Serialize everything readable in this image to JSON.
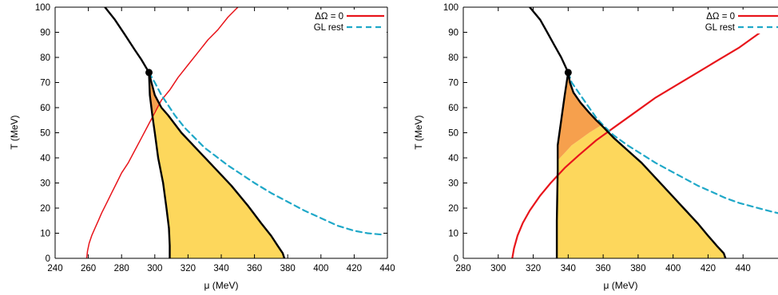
{
  "chart_data": [
    {
      "type": "line",
      "xlabel": "μ (MeV)",
      "ylabel": "T (MeV)",
      "xlim": [
        240,
        440
      ],
      "ylim": [
        0,
        100
      ],
      "xticks": [
        240,
        260,
        280,
        300,
        320,
        340,
        360,
        380,
        400,
        420,
        440
      ],
      "yticks": [
        0,
        10,
        20,
        30,
        40,
        50,
        60,
        70,
        80,
        90,
        100
      ],
      "legend_position": "top-right",
      "legend": [
        {
          "label": "ΔΩ = 0",
          "color": "#e8151b",
          "style": "solid"
        },
        {
          "label": "GL rest",
          "color": "#1fa8c8",
          "style": "dashed"
        }
      ],
      "critical_point": {
        "x": 296.5,
        "y": 74
      },
      "regions": [
        {
          "color": "#fdd75c",
          "points": [
            [
              296.5,
              74
            ],
            [
              298,
              70
            ],
            [
              300,
              65
            ],
            [
              304,
              60
            ],
            [
              308,
              57
            ],
            [
              316,
              50
            ],
            [
              326,
              43
            ],
            [
              336,
              36
            ],
            [
              346,
              29
            ],
            [
              356,
              21
            ],
            [
              364,
              14
            ],
            [
              370,
              9
            ],
            [
              374,
              5
            ],
            [
              377,
              2
            ],
            [
              378,
              0
            ],
            [
              309,
              0
            ],
            [
              309,
              5
            ],
            [
              308.5,
              12
            ],
            [
              307,
              20
            ],
            [
              305,
              30
            ],
            [
              302,
              40
            ],
            [
              300,
              50
            ],
            [
              298.5,
              57
            ],
            [
              297,
              65
            ]
          ]
        },
        {
          "color": "#f6a04d",
          "points": [
            [
              296.5,
              74
            ],
            [
              298,
              70
            ],
            [
              300,
              65
            ],
            [
              303,
              61
            ],
            [
              299,
              58
            ],
            [
              298.5,
              57
            ],
            [
              297,
              65
            ]
          ]
        }
      ],
      "series": [
        {
          "name": "ΔΩ = 0",
          "color": "#e8151b",
          "width": 1.5,
          "dash": "",
          "x": [
            259,
            259.5,
            260.5,
            262,
            264,
            266,
            268,
            271,
            274,
            277,
            280,
            284,
            288,
            292,
            296,
            300,
            304,
            309,
            314,
            320,
            326,
            332,
            338,
            344,
            350
          ],
          "y": [
            0,
            3,
            6,
            9,
            12,
            15,
            18,
            22,
            26,
            30,
            34,
            38,
            43,
            48,
            53,
            58,
            63,
            67,
            72,
            77,
            82,
            87,
            91,
            96,
            100
          ]
        },
        {
          "name": "GL rest",
          "color": "#1fa8c8",
          "width": 2.2,
          "dash": "7,5",
          "x": [
            296.5,
            300,
            304,
            308,
            312,
            318,
            324,
            330,
            336,
            344,
            352,
            360,
            370,
            380,
            390,
            400,
            410,
            420,
            428,
            436
          ],
          "y": [
            74,
            70,
            65,
            61,
            57,
            52,
            48,
            44,
            41,
            37,
            33.5,
            30,
            26,
            22.5,
            19,
            16,
            13,
            11,
            10,
            9.5
          ]
        },
        {
          "name": "",
          "color": "#000000",
          "width": 2.4,
          "dash": "",
          "x": [
            270,
            276,
            282,
            288,
            292,
            296.5
          ],
          "y": [
            100,
            95,
            89,
            83,
            79,
            74
          ]
        },
        {
          "name": "",
          "color": "#000000",
          "width": 2.4,
          "dash": "",
          "x": [
            296.5,
            297,
            298.5,
            300,
            302,
            305,
            307,
            308.5,
            309,
            309
          ],
          "y": [
            74,
            65,
            57,
            50,
            40,
            30,
            20,
            12,
            5,
            0
          ]
        },
        {
          "name": "",
          "color": "#000000",
          "width": 2.4,
          "dash": "",
          "x": [
            296.5,
            298,
            300,
            304,
            308,
            316,
            326,
            336,
            346,
            356,
            364,
            370,
            374,
            377,
            378
          ],
          "y": [
            74,
            70,
            65,
            60,
            57,
            50,
            43,
            36,
            29,
            21,
            14,
            9,
            5,
            2,
            0
          ]
        }
      ]
    },
    {
      "type": "line",
      "xlabel": "μ (MeV)",
      "ylabel": "T (MeV)",
      "xlim": [
        280,
        460
      ],
      "ylim": [
        0,
        100
      ],
      "xticks": [
        280,
        300,
        320,
        340,
        360,
        380,
        400,
        420,
        440
      ],
      "yticks": [
        0,
        10,
        20,
        30,
        40,
        50,
        60,
        70,
        80,
        90,
        100
      ],
      "legend_position": "top-right",
      "legend": [
        {
          "label": "ΔΩ = 0",
          "color": "#e8151b",
          "style": "solid"
        },
        {
          "label": "GL rest",
          "color": "#1fa8c8",
          "style": "dashed"
        }
      ],
      "critical_point": {
        "x": 340,
        "y": 74
      },
      "regions": [
        {
          "color": "#fdd75c",
          "points": [
            [
              359,
              53
            ],
            [
              366,
              48
            ],
            [
              374,
              43
            ],
            [
              382,
              38
            ],
            [
              390,
              32
            ],
            [
              398,
              26
            ],
            [
              406,
              20
            ],
            [
              414,
              14
            ],
            [
              420,
              9
            ],
            [
              425,
              5
            ],
            [
              429,
              2
            ],
            [
              430,
              0
            ],
            [
              333.5,
              0
            ],
            [
              333.5,
              5
            ],
            [
              333.5,
              15
            ],
            [
              334,
              25
            ],
            [
              334,
              35
            ],
            [
              334,
              39
            ],
            [
              338,
              42
            ],
            [
              342,
              45
            ],
            [
              346,
              47
            ],
            [
              352,
              50
            ]
          ]
        },
        {
          "color": "#f6a04d",
          "points": [
            [
              340,
              74
            ],
            [
              341,
              70
            ],
            [
              343,
              66
            ],
            [
              347,
              62
            ],
            [
              352,
              58
            ],
            [
              356,
              55
            ],
            [
              359,
              53
            ],
            [
              352,
              50
            ],
            [
              346,
              47
            ],
            [
              342,
              45
            ],
            [
              338,
              42
            ],
            [
              334,
              39
            ],
            [
              334,
              45
            ],
            [
              336,
              55
            ],
            [
              338,
              65
            ]
          ]
        }
      ],
      "series": [
        {
          "name": "ΔΩ = 0",
          "color": "#e8151b",
          "width": 2.2,
          "dash": "",
          "x": [
            308,
            309,
            311,
            314,
            318,
            324,
            330,
            338,
            346,
            356,
            366,
            378,
            390,
            402,
            414,
            426,
            438,
            450,
            460
          ],
          "y": [
            0,
            4,
            9,
            14,
            19,
            25,
            30,
            36,
            41,
            47,
            52,
            58,
            64,
            69,
            74,
            79,
            84,
            90,
            94
          ]
        },
        {
          "name": "GL rest",
          "color": "#1fa8c8",
          "width": 2.2,
          "dash": "7,5",
          "x": [
            340,
            342,
            344,
            348,
            352,
            356,
            360,
            366,
            374,
            382,
            390,
            398,
            406,
            414,
            422,
            430,
            438,
            446,
            454,
            460
          ],
          "y": [
            74,
            70,
            68,
            64,
            60,
            56,
            53,
            49,
            45,
            41.5,
            38,
            35,
            32,
            29,
            26.5,
            24,
            22,
            20.5,
            19,
            18
          ]
        },
        {
          "name": "",
          "color": "#000000",
          "width": 2.4,
          "dash": "",
          "x": [
            318,
            324,
            328,
            332,
            336,
            340
          ],
          "y": [
            100,
            95,
            90,
            85,
            80,
            74
          ]
        },
        {
          "name": "",
          "color": "#000000",
          "width": 2.4,
          "dash": "",
          "x": [
            340,
            338,
            336,
            334,
            334,
            333.5,
            333.5
          ],
          "y": [
            74,
            65,
            55,
            45,
            35,
            15,
            0
          ]
        },
        {
          "name": "",
          "color": "#000000",
          "width": 2.4,
          "dash": "",
          "x": [
            340,
            341,
            343,
            347,
            352,
            356,
            359,
            366,
            374,
            382,
            390,
            398,
            406,
            414,
            420,
            425,
            429,
            430
          ],
          "y": [
            74,
            70,
            66,
            62,
            58,
            55,
            53,
            48,
            43,
            38,
            32,
            26,
            20,
            14,
            9,
            5,
            2,
            0
          ]
        }
      ]
    }
  ]
}
